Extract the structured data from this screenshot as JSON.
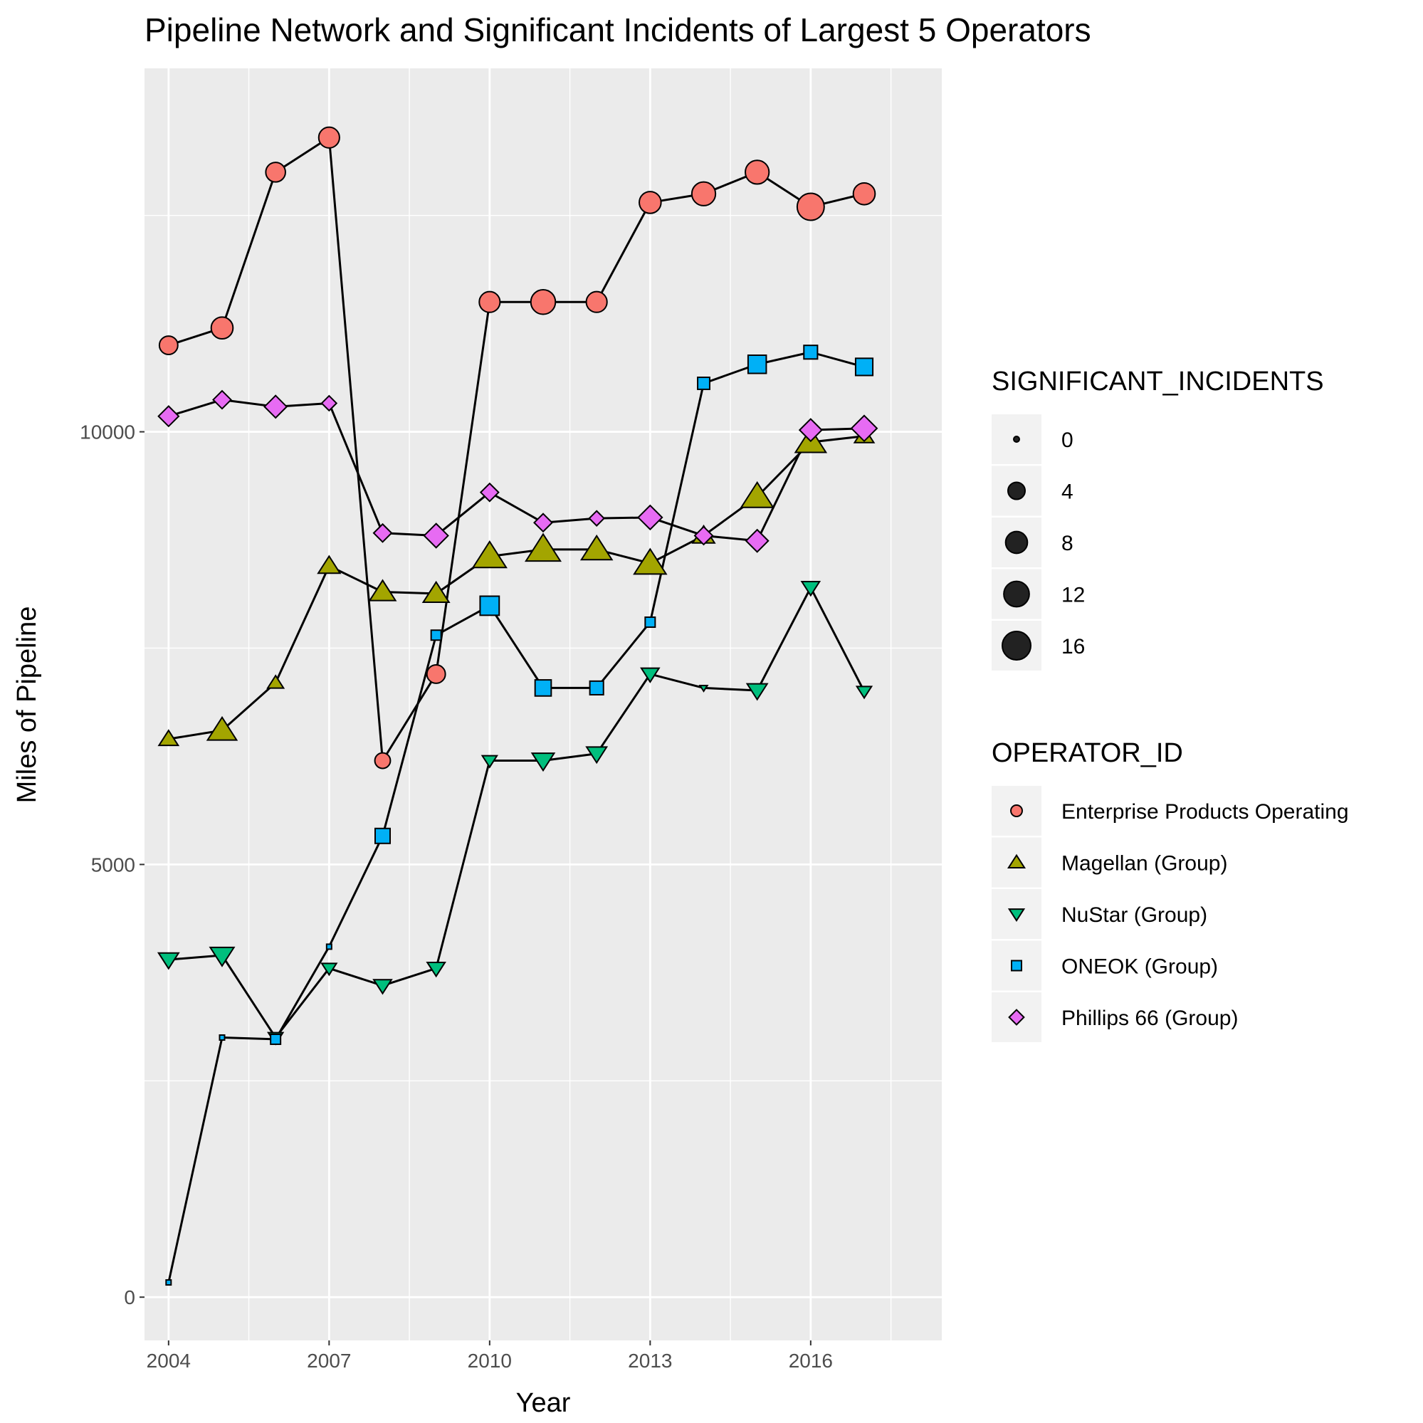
{
  "chart_data": {
    "type": "line",
    "title": "Pipeline Network and Significant Incidents of Largest 5 Operators",
    "xlabel": "Year",
    "ylabel": "Miles of Pipeline",
    "xlim": [
      2003.55,
      2018.45
    ],
    "ylim": [
      -500,
      14200
    ],
    "x_ticks": [
      2004,
      2007,
      2010,
      2013,
      2016
    ],
    "x_minor_ticks": [
      2005.5,
      2008.5,
      2011.5,
      2014.5,
      2017.5
    ],
    "y_ticks": [
      0,
      5000,
      10000
    ],
    "y_minor_ticks": [
      2500,
      7500,
      12500
    ],
    "grid": true,
    "panel_background": "#ebebeb",
    "legend_position": "right",
    "size_legend": {
      "title": "SIGNIFICANT_INCIDENTS",
      "values": [
        0,
        4,
        8,
        12,
        16
      ],
      "labels": [
        "0",
        "4",
        "8",
        "12",
        "16"
      ]
    },
    "color_legend": {
      "title": "OPERATOR_ID"
    },
    "series": [
      {
        "name": "Enterprise Products Operating",
        "color": "#F8766D",
        "shape": "circle",
        "x": [
          2004,
          2005,
          2006,
          2007,
          2008,
          2009,
          2010,
          2011,
          2012,
          2013,
          2014,
          2015,
          2016,
          2017
        ],
        "y": [
          11000,
          11200,
          13000,
          13400,
          6200,
          7200,
          11500,
          11500,
          11500,
          12650,
          12750,
          13000,
          12600,
          12750
        ],
        "incidents": [
          5,
          8,
          6,
          7,
          3,
          5,
          7,
          11,
          7,
          8,
          10,
          10,
          14,
          8
        ]
      },
      {
        "name": "Magellan (Group)",
        "color": "#A3A500",
        "shape": "triangle-up",
        "x": [
          2004,
          2005,
          2006,
          2007,
          2008,
          2009,
          2010,
          2011,
          2012,
          2013,
          2014,
          2015,
          2016,
          2017
        ],
        "y": [
          6450,
          6550,
          7100,
          8450,
          8150,
          8130,
          8560,
          8640,
          8640,
          8480,
          8800,
          9250,
          9880,
          9950
        ],
        "incidents": [
          2,
          7,
          1,
          3,
          5,
          5,
          10,
          11,
          8,
          9,
          3,
          9,
          8,
          2
        ]
      },
      {
        "name": "NuStar (Group)",
        "color": "#00BF7D",
        "shape": "triangle-down",
        "x": [
          2004,
          2005,
          2006,
          2007,
          2008,
          2009,
          2010,
          2011,
          2012,
          2013,
          2014,
          2015,
          2016,
          2017
        ],
        "y": [
          3900,
          3950,
          3000,
          3800,
          3600,
          3800,
          6200,
          6200,
          6280,
          7200,
          7040,
          7010,
          8200,
          7000
        ],
        "incidents": [
          3,
          5,
          1,
          1,
          2,
          2,
          1,
          4,
          3,
          2,
          0,
          3,
          2,
          1
        ]
      },
      {
        "name": "ONEOK (Group)",
        "color": "#00B0F6",
        "shape": "square",
        "x": [
          2004,
          2005,
          2006,
          2007,
          2008,
          2009,
          2010,
          2011,
          2012,
          2013,
          2014,
          2015,
          2016,
          2017
        ],
        "y": [
          170,
          3000,
          2980,
          4050,
          5330,
          7650,
          7990,
          7040,
          7040,
          7800,
          10560,
          10780,
          10920,
          10750
        ],
        "incidents": [
          0,
          0,
          1,
          0,
          4,
          1,
          8,
          5,
          3,
          1,
          2,
          7,
          3,
          6
        ]
      },
      {
        "name": "Phillips 66 (Group)",
        "color": "#E76BF3",
        "shape": "diamond",
        "x": [
          2004,
          2005,
          2006,
          2007,
          2008,
          2009,
          2010,
          2011,
          2012,
          2013,
          2014,
          2015,
          2016,
          2017
        ],
        "y": [
          10180,
          10370,
          10290,
          10330,
          8830,
          8800,
          9300,
          8950,
          9000,
          9010,
          8800,
          8740,
          10020,
          10040
        ],
        "incidents": [
          3,
          2,
          4,
          1,
          2,
          5,
          2,
          2,
          1,
          5,
          2,
          4,
          4,
          6
        ]
      }
    ]
  }
}
